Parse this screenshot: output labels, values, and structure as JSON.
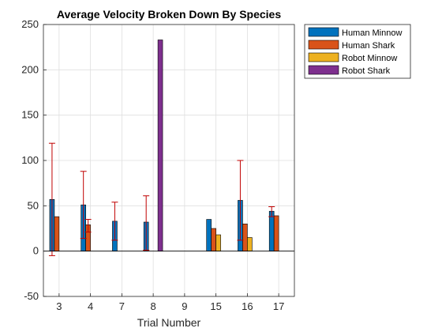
{
  "chart_data": {
    "type": "bar",
    "title": "Average Velocity Broken Down By Species",
    "xlabel": "Trial Number",
    "ylabel": "",
    "categories": [
      "3",
      "4",
      "7",
      "8",
      "9",
      "15",
      "16",
      "17"
    ],
    "ylim": [
      -50,
      250
    ],
    "yticks": [
      -50,
      0,
      50,
      100,
      150,
      200,
      250
    ],
    "grid": true,
    "legend_position": "outside-top-right",
    "series": [
      {
        "name": "Human Minnow",
        "color": "#0072BD",
        "values": [
          57,
          51,
          33,
          32,
          0,
          35,
          56,
          44
        ],
        "error_low": [
          62,
          37,
          21,
          31,
          0,
          0,
          44,
          6
        ],
        "error_high": [
          62,
          37,
          21,
          29,
          0,
          0,
          44,
          5
        ]
      },
      {
        "name": "Human Shark",
        "color": "#D95319",
        "values": [
          38,
          29,
          0,
          0,
          0,
          25,
          30,
          39
        ],
        "error_low": [
          0,
          8,
          0,
          0,
          0,
          0,
          0,
          0
        ],
        "error_high": [
          0,
          6,
          0,
          0,
          0,
          0,
          0,
          0
        ]
      },
      {
        "name": "Robot Minnow",
        "color": "#EDB120",
        "values": [
          0,
          0,
          0,
          0,
          0,
          18,
          15,
          0
        ],
        "error_low": [
          0,
          0,
          0,
          0,
          0,
          0,
          0,
          0
        ],
        "error_high": [
          0,
          0,
          0,
          0,
          0,
          0,
          0,
          0
        ]
      },
      {
        "name": "Robot Shark",
        "color": "#7E2F8E",
        "values": [
          0,
          0,
          0,
          233,
          0,
          0,
          0,
          0
        ],
        "error_low": [
          0,
          0,
          0,
          0,
          0,
          0,
          0,
          0
        ],
        "error_high": [
          0,
          0,
          0,
          0,
          0,
          0,
          0,
          0
        ]
      }
    ],
    "error_bar_color": "#C00000"
  }
}
